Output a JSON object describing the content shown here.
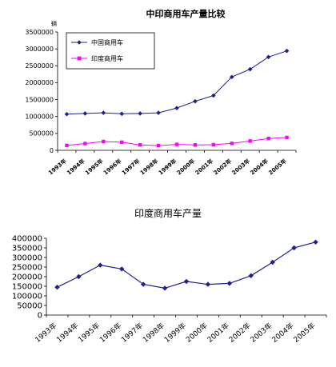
{
  "chart_data": [
    {
      "type": "line",
      "title": "中印商用车产量比较",
      "unit_label": "辆",
      "categories": [
        "1993年",
        "1994年",
        "1995年",
        "1996年",
        "1997年",
        "1998年",
        "1999年",
        "2000年",
        "2001年",
        "2002年",
        "2003年",
        "2004年",
        "2005年"
      ],
      "series": [
        {
          "name": "中国商用车",
          "color": "#1f1f8f",
          "marker": "diamond",
          "values": [
            1070000,
            1090000,
            1110000,
            1080000,
            1090000,
            1110000,
            1250000,
            1450000,
            1620000,
            2170000,
            2400000,
            2760000,
            2940000
          ]
        },
        {
          "name": "印度商用车",
          "color": "#ff00ff",
          "marker": "square",
          "values": [
            145000,
            200000,
            260000,
            240000,
            160000,
            140000,
            175000,
            160000,
            165000,
            205000,
            275000,
            350000,
            380000
          ]
        }
      ],
      "ylim": [
        0,
        3500000
      ],
      "yticks": [
        "0",
        "500000",
        "1000000",
        "1500000",
        "2000000",
        "2500000",
        "3000000",
        "3500000"
      ],
      "grid": false,
      "legend_position": "top-left"
    },
    {
      "type": "line",
      "title": "印度商用车产量",
      "categories": [
        "1993年",
        "1994年",
        "1995年",
        "1996年",
        "1997年",
        "1998年",
        "1999年",
        "2000年",
        "2001年",
        "2002年",
        "2003年",
        "2004年",
        "2005年"
      ],
      "series": [
        {
          "color": "#1f1f8f",
          "marker": "diamond",
          "values": [
            145000,
            200000,
            260000,
            240000,
            160000,
            140000,
            175000,
            160000,
            165000,
            205000,
            275000,
            350000,
            380000
          ]
        }
      ],
      "ylim": [
        0,
        400000
      ],
      "yticks": [
        "0",
        "50000",
        "100000",
        "150000",
        "200000",
        "250000",
        "300000",
        "350000",
        "400000"
      ],
      "grid": false
    }
  ]
}
